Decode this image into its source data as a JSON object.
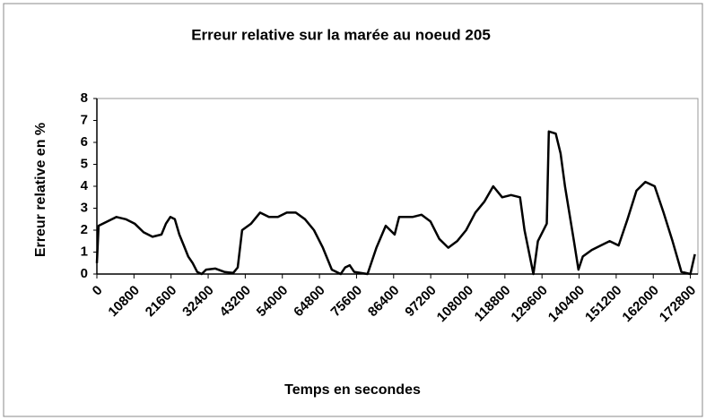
{
  "chart_data": {
    "type": "line",
    "title": "Erreur relative sur la marée au noeud 205",
    "x_label": "Temps en secondes",
    "y_label": "Erreur relative en %",
    "xlim": [
      0,
      175000
    ],
    "ylim": [
      0,
      8
    ],
    "xticks": [
      0,
      10800,
      21600,
      32400,
      43200,
      54000,
      64800,
      75600,
      86400,
      97200,
      108000,
      118800,
      129600,
      140400,
      151200,
      162000,
      172800
    ],
    "yticks": [
      0,
      1,
      2,
      3,
      4,
      5,
      6,
      7,
      8
    ],
    "x": [
      0,
      500,
      4400,
      5700,
      8400,
      11000,
      13600,
      16200,
      18800,
      20100,
      21400,
      22700,
      24000,
      25300,
      26600,
      27900,
      29200,
      30500,
      31800,
      34500,
      37100,
      39700,
      41000,
      42300,
      44900,
      47500,
      50100,
      52700,
      55300,
      57900,
      60600,
      63200,
      65800,
      68400,
      71000,
      72300,
      73600,
      74900,
      78800,
      81400,
      84100,
      86700,
      88000,
      91900,
      94500,
      97100,
      99700,
      102300,
      104900,
      107500,
      110200,
      112800,
      115400,
      118000,
      120600,
      123200,
      124500,
      127100,
      128400,
      131000,
      131600,
      133600,
      135000,
      136300,
      138900,
      140200,
      141500,
      144100,
      146700,
      149300,
      151900,
      154500,
      157100,
      159700,
      162400,
      165000,
      167600,
      170200,
      172800,
      174100
    ],
    "series": [
      {
        "color": "#000000",
        "values": [
          0.5,
          2.2,
          2.5,
          2.6,
          2.5,
          2.3,
          1.9,
          1.7,
          1.8,
          2.3,
          2.6,
          2.5,
          1.8,
          1.3,
          0.8,
          0.5,
          0.1,
          0.0,
          0.2,
          0.25,
          0.1,
          0.05,
          0.3,
          2.0,
          2.3,
          2.8,
          2.6,
          2.6,
          2.8,
          2.8,
          2.5,
          2.0,
          1.2,
          0.2,
          0.0,
          0.3,
          0.4,
          0.1,
          0.0,
          1.2,
          2.2,
          1.8,
          2.6,
          2.6,
          2.7,
          2.4,
          1.6,
          1.2,
          1.5,
          2.0,
          2.8,
          3.3,
          4.0,
          3.5,
          3.6,
          3.5,
          2.0,
          0.0,
          1.5,
          2.3,
          6.5,
          6.4,
          5.5,
          4.0,
          1.5,
          0.2,
          0.8,
          1.1,
          1.3,
          1.5,
          1.3,
          2.5,
          3.8,
          4.2,
          4.0,
          2.8,
          1.5,
          0.1,
          0.0,
          0.9
        ]
      }
    ]
  }
}
